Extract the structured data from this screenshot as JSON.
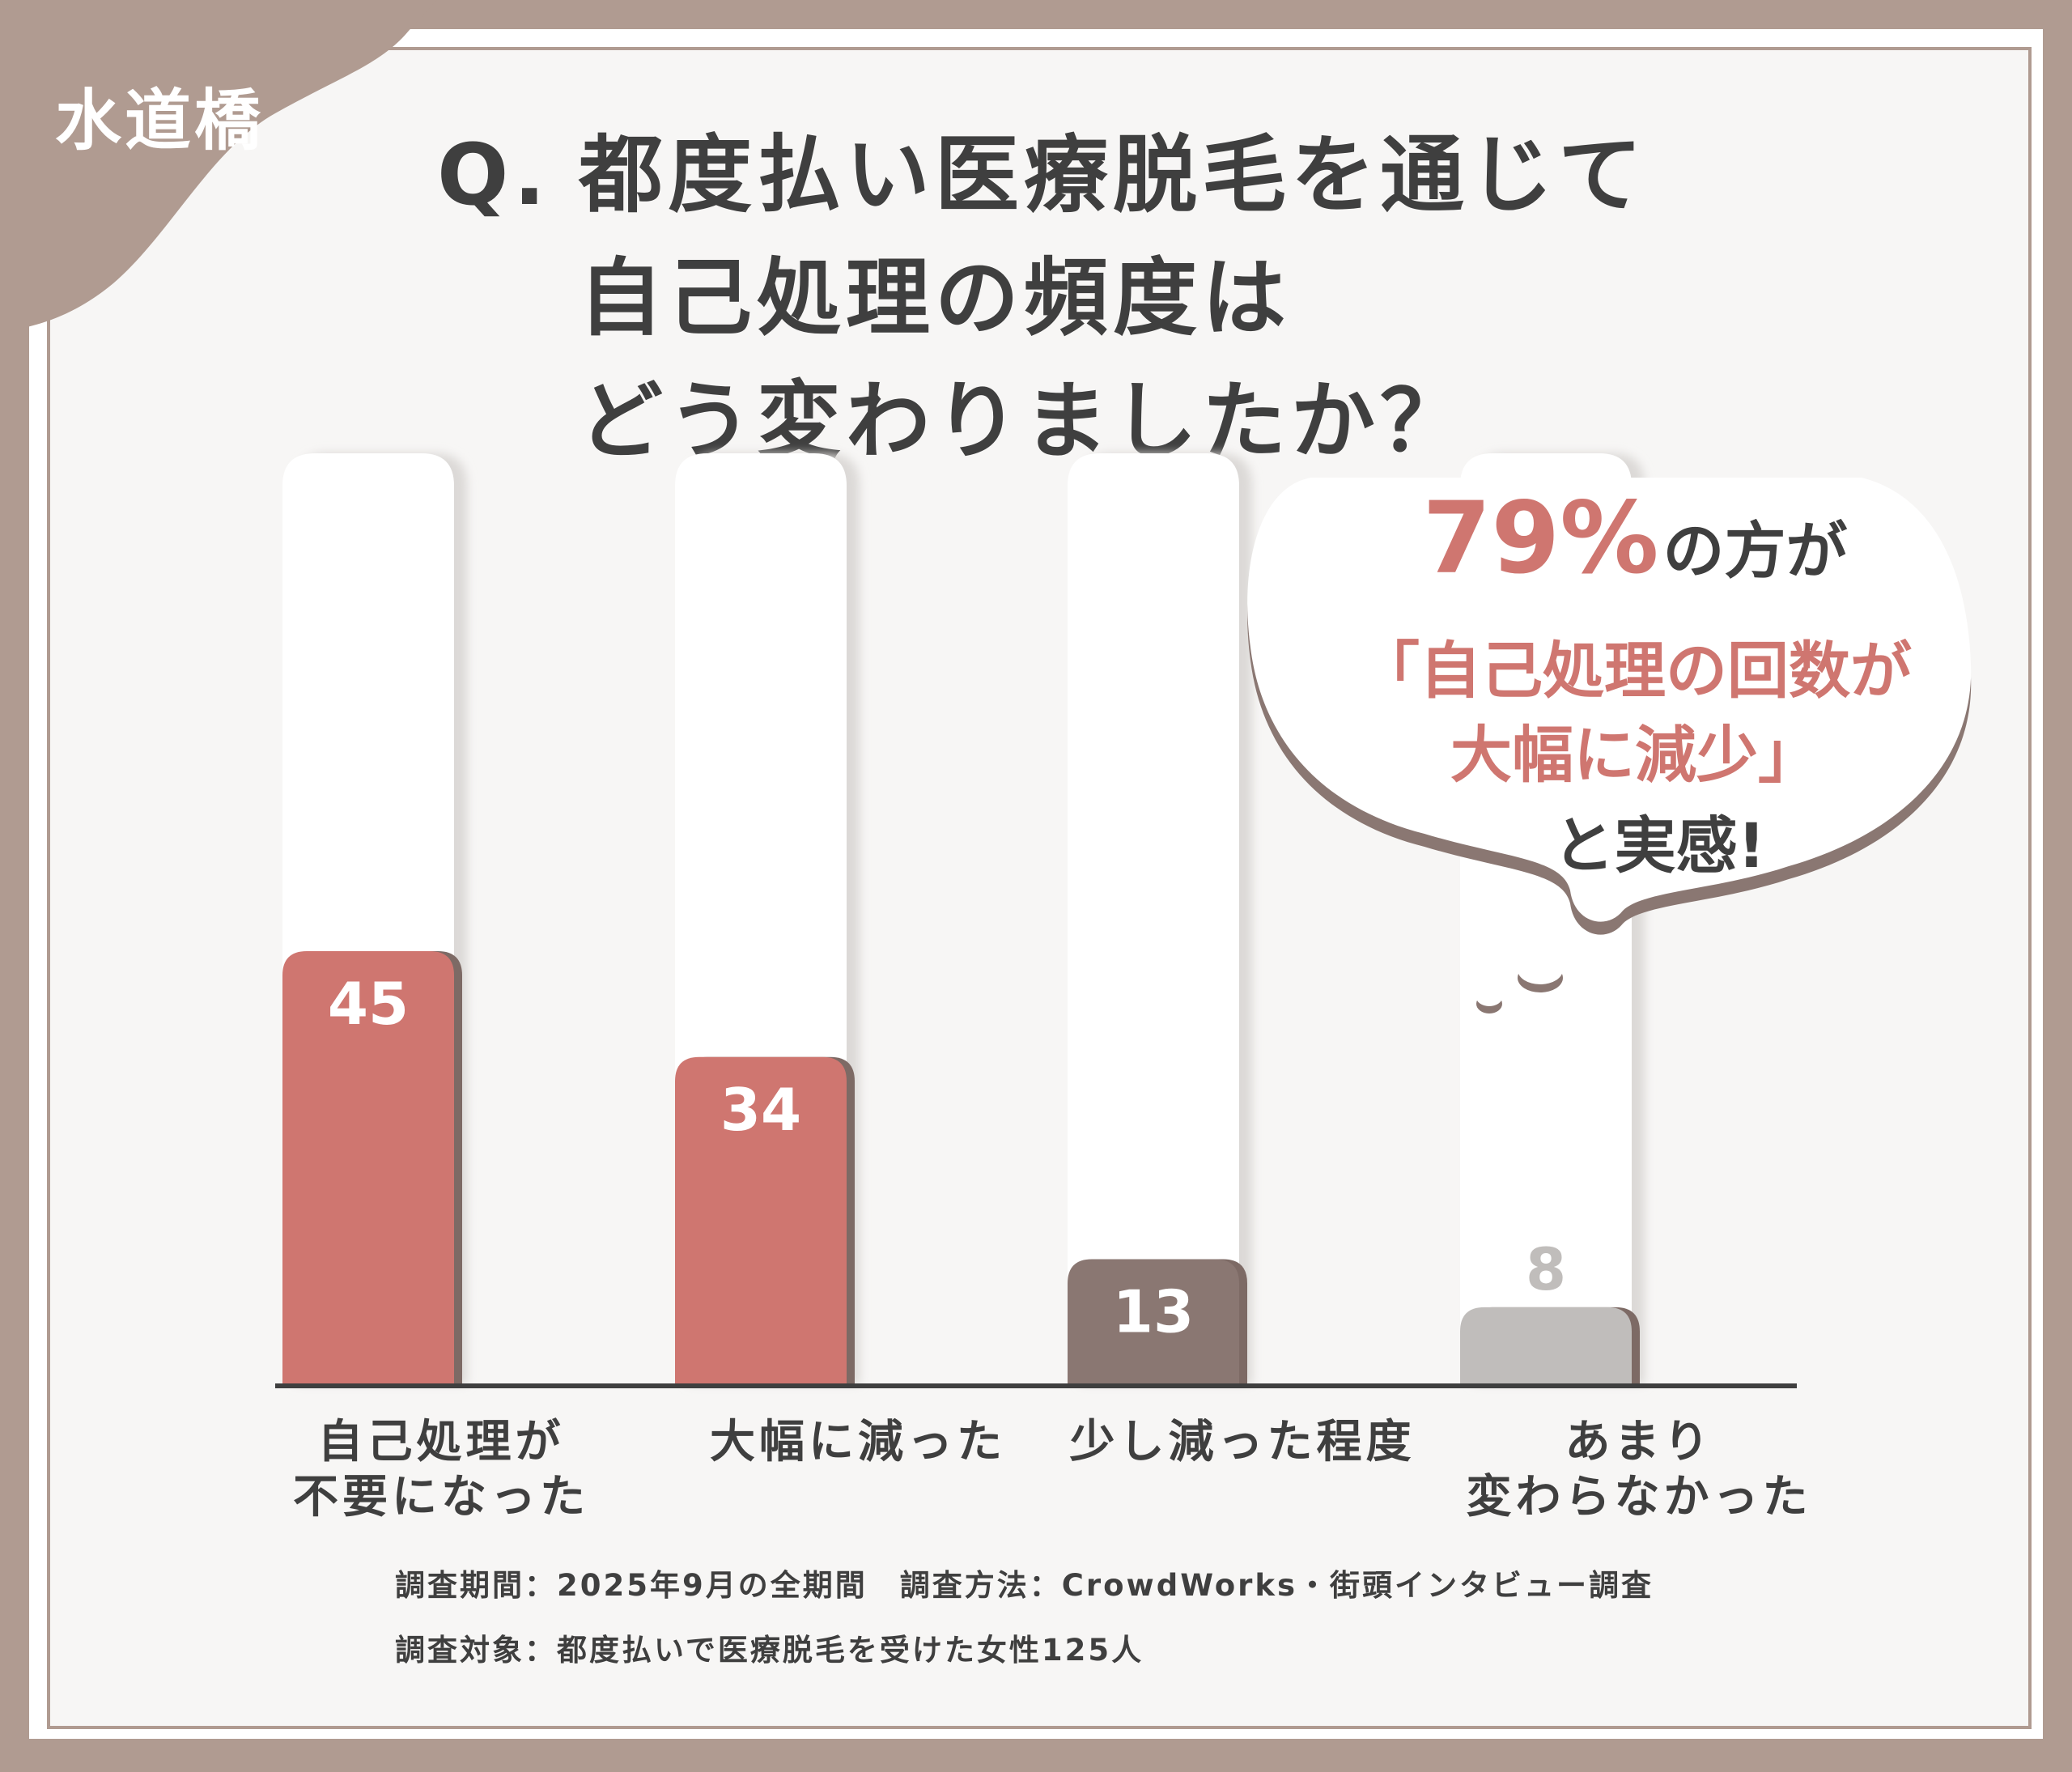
{
  "badge": {
    "label": "水道橋"
  },
  "question": {
    "prefix": "Q.",
    "lines": [
      "都度払い医療脱毛を通じて",
      "自己処理の頻度は",
      "どう変わりましたか？"
    ]
  },
  "callout": {
    "percent": "79%",
    "line1_suffix": "の方が",
    "line2": "「自己処理の回数が",
    "line3": "大幅に減少」",
    "line4": "と実感!"
  },
  "chart_data": {
    "type": "bar",
    "categories": [
      "自己処理が\n不要になった",
      "大幅に減った",
      "少し減った程度",
      "あまり\n変わらなかった"
    ],
    "values": [
      45,
      34,
      13,
      8
    ],
    "value_labels": [
      "45",
      "34",
      "13",
      "8"
    ],
    "ylim": [
      0,
      100
    ],
    "grid": false,
    "colors": [
      "#cf7670",
      "#cf7670",
      "#8a7772",
      "#c0bdbb"
    ]
  },
  "footnotes": [
    "調査期間：2025年9月の全期間　調査方法：CrowdWorks・街頭インタビュー調査",
    "調査対象：都度払いで医療脱毛を受けた女性125人"
  ],
  "colors": {
    "frame": "#b09b91",
    "accent": "#cf7670",
    "text": "#3f3f3f"
  }
}
